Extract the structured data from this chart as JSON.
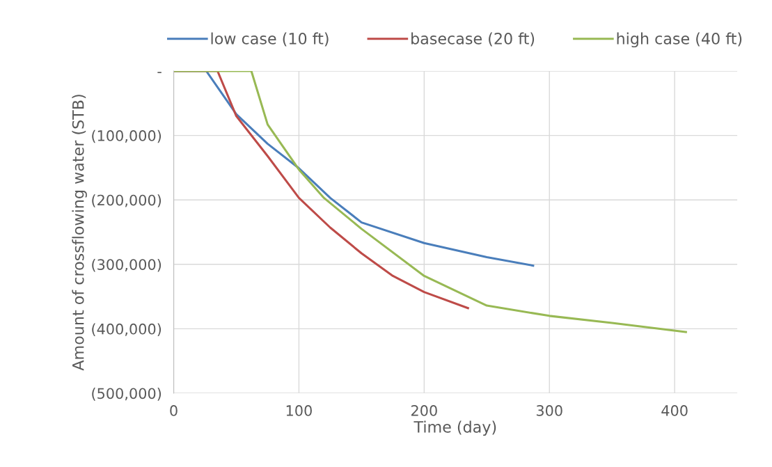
{
  "chart_data": {
    "type": "line",
    "xlabel": "Time (day)",
    "ylabel": "Amount of crossflowing water (STB)",
    "xlim": [
      0,
      450
    ],
    "xticks": [
      0,
      100,
      200,
      300,
      400
    ],
    "ylim": [
      -500000,
      0
    ],
    "yticks": [
      {
        "value": -500000,
        "label": "(500,000)"
      },
      {
        "value": -400000,
        "label": "(400,000)"
      },
      {
        "value": -300000,
        "label": "(300,000)"
      },
      {
        "value": -200000,
        "label": "(200,000)"
      },
      {
        "value": -100000,
        "label": "(100,000)"
      },
      {
        "value": 0,
        "label": "-"
      }
    ],
    "grid": true,
    "legend": "top",
    "marker": "none",
    "line_style": "solid",
    "series": [
      {
        "name": "low case (10 ft)",
        "color": "#4a7ebb",
        "x": [
          0,
          26,
          50,
          75,
          100,
          125,
          150,
          200,
          250,
          287
        ],
        "values": [
          0,
          0,
          -67000,
          -113000,
          -151000,
          -197000,
          -235000,
          -267000,
          -289000,
          -302000
        ]
      },
      {
        "name": "basecase (20 ft)",
        "color": "#be4b48",
        "x": [
          0,
          35,
          50,
          75,
          100,
          125,
          150,
          175,
          200,
          235
        ],
        "values": [
          0,
          0,
          -70000,
          -132000,
          -197000,
          -243000,
          -283000,
          -318000,
          -343000,
          -368000
        ]
      },
      {
        "name": "high case (40 ft)",
        "color": "#98b954",
        "x": [
          0,
          62,
          75,
          100,
          120,
          150,
          200,
          250,
          300,
          350,
          409
        ],
        "values": [
          0,
          0,
          -83000,
          -153000,
          -197000,
          -245000,
          -318000,
          -364000,
          -380000,
          -391000,
          -405000
        ]
      }
    ]
  }
}
